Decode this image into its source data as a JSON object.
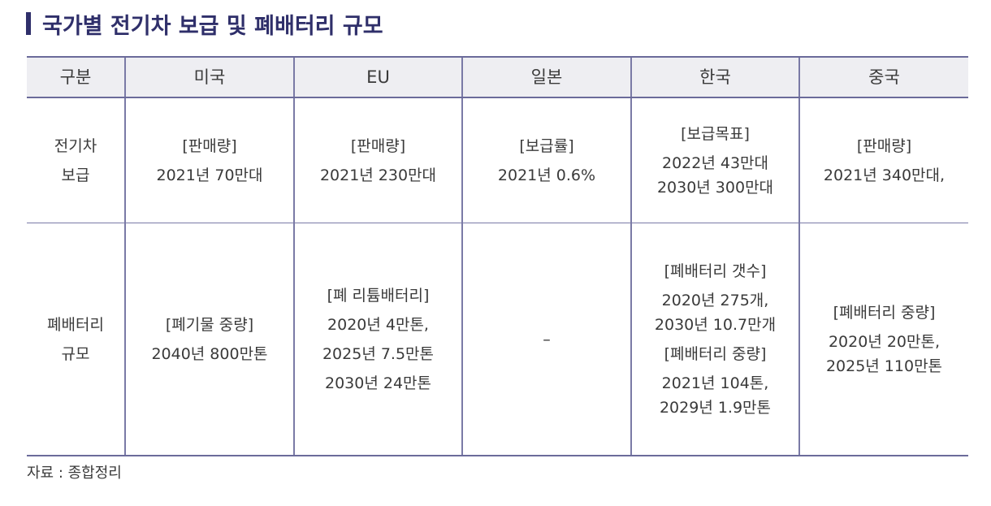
{
  "title": "국가별 전기차 보급 및 폐배터리 규모",
  "table": {
    "headers": [
      "구분",
      "미국",
      "EU",
      "일본",
      "한국",
      "중국"
    ],
    "rows": [
      {
        "label": [
          "전기차",
          "보급"
        ],
        "cells": [
          [
            "[판매량]",
            "2021년 70만대"
          ],
          [
            "[판매량]",
            "2021년 230만대"
          ],
          [
            "[보급률]",
            "2021년 0.6%"
          ],
          [
            "[보급목표]",
            "2022년 43만대",
            "2030년 300만대"
          ],
          [
            "[판매량]",
            "2021년 340만대,"
          ]
        ]
      },
      {
        "label": [
          "폐배터리",
          "규모"
        ],
        "cells": [
          [
            "[폐기물 중량]",
            "2040년 800만톤"
          ],
          [
            "[폐 리튬배터리]",
            "2020년 4만톤,",
            "2025년 7.5만톤",
            "2030년 24만톤"
          ],
          [
            "–"
          ],
          [
            "[폐배터리 갯수]",
            "2020년 275개,",
            "2030년 10.7만개",
            "[폐배터리 중량]",
            "2021년 104톤,",
            "2029년 1.9만톤"
          ],
          [
            "[폐배터리 중량]",
            "2020년 20만톤,",
            "2025년 110만톤"
          ]
        ]
      }
    ]
  },
  "source": "자료 : 종합정리"
}
